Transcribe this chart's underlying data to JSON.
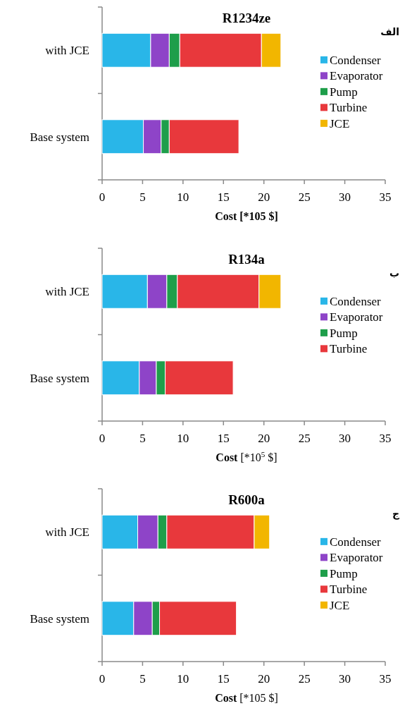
{
  "chart_data": [
    {
      "type": "bar",
      "orientation": "horizontal",
      "stacked": true,
      "title": "R1234ze",
      "xlabel": "**Cost [*105 $]**",
      "annotations": [
        "الف"
      ],
      "categories": [
        "with JCE",
        "Base system"
      ],
      "xlim": [
        0,
        35
      ],
      "xticks": [
        0,
        5,
        10,
        15,
        20,
        25,
        30,
        35
      ],
      "legend": "right",
      "series": [
        {
          "name": "Condenser",
          "color": "#29b6e8",
          "values": [
            6.0,
            5.1
          ]
        },
        {
          "name": "Evaporator",
          "color": "#8e44c8",
          "values": [
            2.3,
            2.2
          ]
        },
        {
          "name": "Pump",
          "color": "#1e9e4a",
          "values": [
            1.3,
            1.0
          ]
        },
        {
          "name": "Turbine",
          "color": "#e8383c",
          "values": [
            10.1,
            8.6
          ]
        },
        {
          "name": "JCE",
          "color": "#f2b600",
          "values": [
            2.4,
            null
          ]
        }
      ]
    },
    {
      "type": "bar",
      "orientation": "horizontal",
      "stacked": true,
      "title": "R134a",
      "xlabel": "**Cost** [*10$^{5}$ $]",
      "annotations": [
        "ب"
      ],
      "categories": [
        "with JCE",
        "Base system"
      ],
      "xlim": [
        0,
        35
      ],
      "xticks": [
        0,
        5,
        10,
        15,
        20,
        25,
        30,
        35
      ],
      "legend": "right",
      "series": [
        {
          "name": "Condenser",
          "color": "#29b6e8",
          "values": [
            5.6,
            4.6
          ]
        },
        {
          "name": "Evaporator",
          "color": "#8e44c8",
          "values": [
            2.4,
            2.1
          ]
        },
        {
          "name": "Pump",
          "color": "#1e9e4a",
          "values": [
            1.3,
            1.1
          ]
        },
        {
          "name": "Turbine",
          "color": "#e8383c",
          "values": [
            10.1,
            8.4
          ]
        },
        {
          "color": "#f2b600",
          "values": [
            2.7,
            null
          ]
        }
      ]
    },
    {
      "type": "bar",
      "orientation": "horizontal",
      "stacked": true,
      "title": "R600a",
      "xlabel": "**Cost** [*105 $]",
      "annotations": [
        "ج"
      ],
      "categories": [
        "with JCE",
        "Base system"
      ],
      "xlim": [
        0,
        35
      ],
      "xticks": [
        0,
        5,
        10,
        15,
        20,
        25,
        30,
        35
      ],
      "legend": "right",
      "series": [
        {
          "name": "Condenser",
          "color": "#29b6e8",
          "values": [
            4.4,
            3.9
          ]
        },
        {
          "name": "Evaporator",
          "color": "#8e44c8",
          "values": [
            2.5,
            2.3
          ]
        },
        {
          "name": "Pump",
          "color": "#1e9e4a",
          "values": [
            1.1,
            0.9
          ]
        },
        {
          "name": "Turbine",
          "color": "#e8383c",
          "values": [
            10.8,
            9.5
          ]
        },
        {
          "name": "JCE",
          "color": "#f2b600",
          "values": [
            1.9,
            null
          ]
        }
      ]
    }
  ]
}
